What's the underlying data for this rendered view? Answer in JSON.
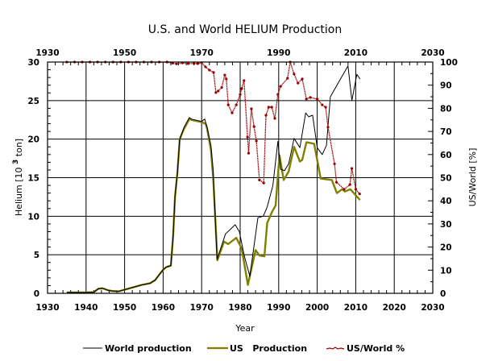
{
  "chart_data": {
    "type": "line",
    "title": "U.S. and World HELIUM Production",
    "xlabel": "Year",
    "ylabel": "Helium [10 3 ton]",
    "ylabel_parts": {
      "pre": "Helium [10 ",
      "sup": "3",
      "post": " ton]"
    },
    "y2label": "US/World [%]",
    "xlim": [
      1930,
      2030
    ],
    "ylim": [
      0,
      30
    ],
    "y2lim": [
      0,
      100
    ],
    "grid": true,
    "x_ticks": [
      1930,
      1940,
      1950,
      1960,
      1970,
      1980,
      1990,
      2000,
      2010,
      2020,
      2030
    ],
    "x_ticks_top": [
      1930,
      1950,
      1970,
      1990,
      2010,
      2030
    ],
    "y_ticks": [
      0,
      5,
      10,
      15,
      20,
      25,
      30
    ],
    "y2_ticks": [
      0,
      10,
      20,
      30,
      40,
      50,
      60,
      70,
      80,
      90,
      100
    ],
    "legend_position": "bottom",
    "series": [
      {
        "name": "World production",
        "axis": "left",
        "color": "#000000",
        "points": [
          [
            1935,
            0.1
          ],
          [
            1940,
            0.1
          ],
          [
            1942,
            0.15
          ],
          [
            1943.2,
            0.6
          ],
          [
            1944.3,
            0.65
          ],
          [
            1945.7,
            0.4
          ],
          [
            1946.7,
            0.3
          ],
          [
            1948.4,
            0.25
          ],
          [
            1950.9,
            0.6
          ],
          [
            1954.5,
            1.1
          ],
          [
            1956.6,
            1.3
          ],
          [
            1957.9,
            1.7
          ],
          [
            1959.9,
            3.0
          ],
          [
            1960.8,
            3.4
          ],
          [
            1962,
            3.6
          ],
          [
            1962.6,
            7.4
          ],
          [
            1963.1,
            12.6
          ],
          [
            1963.7,
            15.6
          ],
          [
            1964.3,
            20.0
          ],
          [
            1965.4,
            21.5
          ],
          [
            1966.8,
            22.8
          ],
          [
            1967.4,
            22.6
          ],
          [
            1970,
            22.3
          ],
          [
            1970.8,
            22.6
          ],
          [
            1971.4,
            21.6
          ],
          [
            1972.4,
            19.2
          ],
          [
            1973,
            16.0
          ],
          [
            1974,
            4.4
          ],
          [
            1976.2,
            7.7
          ],
          [
            1978.7,
            8.9
          ],
          [
            1979.8,
            8.0
          ],
          [
            1981,
            5.0
          ],
          [
            1982.5,
            2.2
          ],
          [
            1984.6,
            9.8
          ],
          [
            1986,
            10.0
          ],
          [
            1987,
            11.2
          ],
          [
            1988.5,
            14.0
          ],
          [
            1989.8,
            19.7
          ],
          [
            1990.5,
            16.1
          ],
          [
            1991.5,
            15.9
          ],
          [
            1992.6,
            16.8
          ],
          [
            1994,
            20.1
          ],
          [
            1995.5,
            18.9
          ],
          [
            1997,
            23.4
          ],
          [
            1997.8,
            22.9
          ],
          [
            1998.8,
            23.1
          ],
          [
            2000,
            18.9
          ],
          [
            2001.3,
            18.0
          ],
          [
            2002.4,
            19.2
          ],
          [
            2003.4,
            25.5
          ],
          [
            2008,
            29.5
          ],
          [
            2009,
            25.0
          ],
          [
            2010.3,
            28.4
          ],
          [
            2011.1,
            27.8
          ]
        ]
      },
      {
        "name": "US   Production",
        "axis": "left",
        "color": "#808000",
        "points": [
          [
            1935,
            0.1
          ],
          [
            1940,
            0.1
          ],
          [
            1942,
            0.15
          ],
          [
            1943.2,
            0.6
          ],
          [
            1944.3,
            0.65
          ],
          [
            1945.7,
            0.4
          ],
          [
            1946.7,
            0.3
          ],
          [
            1948.4,
            0.25
          ],
          [
            1950.9,
            0.6
          ],
          [
            1954.5,
            1.1
          ],
          [
            1956.6,
            1.3
          ],
          [
            1957.9,
            1.7
          ],
          [
            1959.9,
            3.0
          ],
          [
            1960.8,
            3.4
          ],
          [
            1962,
            3.6
          ],
          [
            1962.6,
            7.4
          ],
          [
            1963.1,
            12.6
          ],
          [
            1963.7,
            15.6
          ],
          [
            1964.3,
            20.0
          ],
          [
            1965.4,
            21.3
          ],
          [
            1966.8,
            22.6
          ],
          [
            1967.4,
            22.5
          ],
          [
            1970,
            22.2
          ],
          [
            1971,
            22.0
          ],
          [
            1971.4,
            21.4
          ],
          [
            1972.4,
            18.6
          ],
          [
            1973,
            15.0
          ],
          [
            1974.1,
            4.3
          ],
          [
            1975.8,
            6.7
          ],
          [
            1976.9,
            6.4
          ],
          [
            1979,
            7.2
          ],
          [
            1980.4,
            5.8
          ],
          [
            1982,
            1.1
          ],
          [
            1984,
            5.6
          ],
          [
            1985,
            4.9
          ],
          [
            1986.3,
            4.8
          ],
          [
            1987,
            9.1
          ],
          [
            1988.2,
            10.5
          ],
          [
            1989.2,
            11.4
          ],
          [
            1990.2,
            17.9
          ],
          [
            1991.3,
            14.7
          ],
          [
            1992.6,
            15.8
          ],
          [
            1994,
            19.0
          ],
          [
            1995.5,
            17.1
          ],
          [
            1996.1,
            17.3
          ],
          [
            1997.2,
            19.6
          ],
          [
            1999.2,
            19.4
          ],
          [
            2000.9,
            14.9
          ],
          [
            2003.8,
            14.7
          ],
          [
            2005.1,
            13.0
          ],
          [
            2006.5,
            13.5
          ],
          [
            2007.2,
            13.2
          ],
          [
            2008.6,
            13.5
          ],
          [
            2011.1,
            12.1
          ]
        ]
      },
      {
        "name": "US/World %",
        "axis": "right",
        "color": "#990000",
        "marker": "dot",
        "points": [
          [
            1935,
            100
          ],
          [
            1937,
            100
          ],
          [
            1939,
            100
          ],
          [
            1941,
            100
          ],
          [
            1943,
            100
          ],
          [
            1945,
            100
          ],
          [
            1947,
            100
          ],
          [
            1949,
            100
          ],
          [
            1951,
            100
          ],
          [
            1953,
            100
          ],
          [
            1955,
            100
          ],
          [
            1957,
            100
          ],
          [
            1959,
            100
          ],
          [
            1961,
            100
          ],
          [
            1962.5,
            99.5
          ],
          [
            1963.5,
            99.2
          ],
          [
            1965,
            99.6
          ],
          [
            1966.5,
            99.3
          ],
          [
            1968,
            99.4
          ],
          [
            1969,
            99.3
          ],
          [
            1970,
            99.7
          ],
          [
            1971,
            97.9
          ],
          [
            1972,
            96.5
          ],
          [
            1973.1,
            95.5
          ],
          [
            1973.7,
            86.8
          ],
          [
            1974.3,
            87.5
          ],
          [
            1975.2,
            89.0
          ],
          [
            1976,
            94.4
          ],
          [
            1976.4,
            92.7
          ],
          [
            1976.9,
            81.5
          ],
          [
            1977.9,
            78.0
          ],
          [
            1979,
            81.5
          ],
          [
            1980,
            86.0
          ],
          [
            1980.4,
            88.5
          ],
          [
            1981,
            92.0
          ],
          [
            1981.9,
            67.6
          ],
          [
            1982.2,
            60.6
          ],
          [
            1982.9,
            79.8
          ],
          [
            1983.6,
            72.1
          ],
          [
            1984.2,
            65.9
          ],
          [
            1985,
            49.0
          ],
          [
            1986.1,
            47.7
          ],
          [
            1986.7,
            77.0
          ],
          [
            1987.4,
            80.5
          ],
          [
            1988.2,
            80.5
          ],
          [
            1989,
            75.6
          ],
          [
            1989.8,
            86.0
          ],
          [
            1990.5,
            89.5
          ],
          [
            1992.3,
            93.0
          ],
          [
            1993,
            100.0
          ],
          [
            1994,
            94.8
          ],
          [
            1995,
            90.9
          ],
          [
            1996.1,
            92.7
          ],
          [
            1997.2,
            84.0
          ],
          [
            1998.2,
            84.7
          ],
          [
            2000,
            84.0
          ],
          [
            2001.3,
            81.5
          ],
          [
            2002.2,
            80.5
          ],
          [
            2002.8,
            71.8
          ],
          [
            2004.5,
            56.0
          ],
          [
            2005,
            48.0
          ],
          [
            2007,
            45.0
          ],
          [
            2008.5,
            47.0
          ],
          [
            2009,
            54.0
          ],
          [
            2010,
            45.0
          ],
          [
            2011,
            43.0
          ]
        ]
      }
    ]
  }
}
